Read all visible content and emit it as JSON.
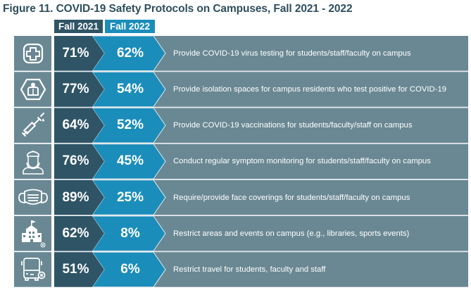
{
  "title": "Figure 11.  COVID-19 Safety Protocols on Campuses, Fall 2021 - 2022",
  "colors": {
    "fall2021": "#2f5466",
    "fall2022": "#1b8dbb",
    "description_bg": "#6a8893",
    "icon_bg": "#6a8893",
    "title": "#2e4e5e"
  },
  "chart_data": {
    "type": "table",
    "title": "Figure 11.  COVID-19 Safety Protocols on Campuses, Fall 2021 - 2022",
    "columns": [
      "Fall 2021",
      "Fall 2022"
    ],
    "rows": [
      {
        "icon": "medical-cross-icon",
        "fall2021": "71%",
        "fall2022": "62%",
        "label": "Provide COVID-19 virus testing for students/staff/faculty on campus"
      },
      {
        "icon": "isolation-person-icon",
        "fall2021": "77%",
        "fall2022": "54%",
        "label": "Provide isolation spaces for campus residents who test positive for COVID-19"
      },
      {
        "icon": "syringe-icon",
        "fall2021": "64%",
        "fall2022": "52%",
        "label": "Provide COVID-19 vaccinations for students/faculty/staff on campus"
      },
      {
        "icon": "nurse-icon",
        "fall2021": "76%",
        "fall2022": "45%",
        "label": "Conduct regular symptom monitoring for students/staff/faculty on campus"
      },
      {
        "icon": "face-mask-icon",
        "fall2021": "89%",
        "fall2022": "25%",
        "label": "Require/provide face coverings for students/staff/faculty on campus"
      },
      {
        "icon": "school-building-icon",
        "fall2021": "62%",
        "fall2022": "8%",
        "label": "Restrict areas and events on campus (e.g., libraries, sports events)"
      },
      {
        "icon": "bus-icon",
        "fall2021": "51%",
        "fall2022": "6%",
        "label": "Restrict travel for students, faculty and staff"
      }
    ]
  }
}
